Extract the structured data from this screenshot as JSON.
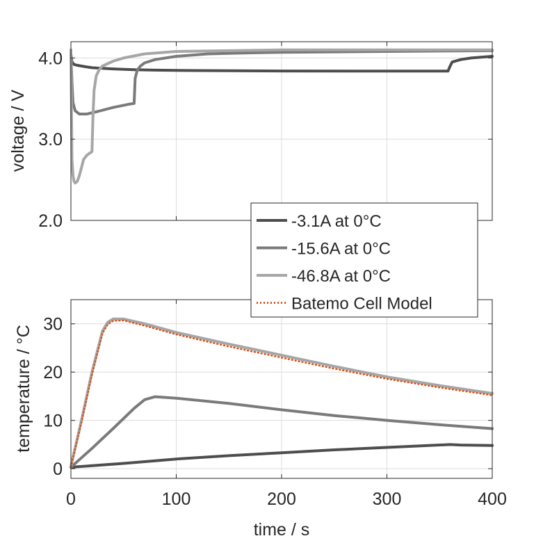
{
  "chart_data": [
    {
      "type": "line",
      "ylabel": "voltage / V",
      "xlabel": "",
      "xlim": [
        0,
        400
      ],
      "ylim": [
        2.0,
        4.2
      ],
      "xticks": [
        0,
        100,
        200,
        300,
        400
      ],
      "yticks": [
        "2.0",
        "3.0",
        "4.0"
      ],
      "ytick_values": [
        2.0,
        3.0,
        4.0
      ],
      "show_xticklabels": false,
      "grid": true,
      "series": [
        {
          "name": "-3.1A at 0°C",
          "color": "#4d4d4d",
          "x": [
            0,
            1,
            3,
            6,
            10,
            20,
            40,
            60,
            80,
            120,
            200,
            300,
            358,
            360,
            362,
            370,
            380,
            400
          ],
          "y": [
            4.05,
            3.95,
            3.92,
            3.91,
            3.9,
            3.88,
            3.865,
            3.855,
            3.85,
            3.845,
            3.84,
            3.838,
            3.838,
            3.9,
            3.95,
            3.98,
            4.0,
            4.02
          ]
        },
        {
          "name": "-15.6A at 0°C",
          "color": "#7a7a7a",
          "x": [
            0,
            1,
            2,
            4,
            8,
            15,
            25,
            40,
            55,
            60,
            61,
            63,
            66,
            70,
            80,
            100,
            130,
            160,
            200,
            250,
            300,
            350,
            400
          ],
          "y": [
            4.05,
            3.7,
            3.45,
            3.35,
            3.31,
            3.31,
            3.34,
            3.39,
            3.43,
            3.44,
            3.75,
            3.85,
            3.9,
            3.94,
            3.98,
            4.02,
            4.05,
            4.06,
            4.07,
            4.075,
            4.08,
            4.085,
            4.09
          ]
        },
        {
          "name": "-46.8A at 0°C",
          "color": "#a6a6a6",
          "x": [
            0,
            0.5,
            1,
            2,
            3,
            4,
            6,
            8,
            10,
            12,
            15,
            18,
            19.5,
            20,
            21,
            22,
            24,
            27,
            30,
            35,
            40,
            50,
            70,
            100,
            150,
            200,
            300,
            400
          ],
          "y": [
            4.1,
            3.4,
            2.75,
            2.55,
            2.48,
            2.46,
            2.48,
            2.55,
            2.65,
            2.75,
            2.8,
            2.83,
            2.84,
            2.85,
            3.3,
            3.6,
            3.78,
            3.86,
            3.9,
            3.93,
            3.96,
            4.0,
            4.05,
            4.08,
            4.09,
            4.1,
            4.1,
            4.1
          ]
        }
      ]
    },
    {
      "type": "line",
      "ylabel": "temperature / °C",
      "xlabel": "time / s",
      "xlim": [
        0,
        400
      ],
      "ylim": [
        -2,
        35
      ],
      "xticks": [
        0,
        100,
        200,
        300,
        400
      ],
      "yticks": [
        "0",
        "10",
        "20",
        "30"
      ],
      "ytick_values": [
        0,
        10,
        20,
        30
      ],
      "show_xticklabels": true,
      "grid": true,
      "series": [
        {
          "name": "-3.1A at 0°C",
          "color": "#4d4d4d",
          "x": [
            0,
            50,
            100,
            150,
            200,
            250,
            300,
            360,
            370,
            400
          ],
          "y": [
            0.3,
            1.1,
            2.0,
            2.7,
            3.3,
            3.9,
            4.4,
            5.0,
            4.9,
            4.8
          ]
        },
        {
          "name": "-15.6A at 0°C",
          "color": "#7a7a7a",
          "x": [
            0,
            20,
            40,
            60,
            70,
            80,
            100,
            150,
            200,
            250,
            300,
            350,
            400
          ],
          "y": [
            0.3,
            4.2,
            8.3,
            12.5,
            14.3,
            14.9,
            14.6,
            13.5,
            12.2,
            11.0,
            10.0,
            9.1,
            8.3
          ]
        },
        {
          "name": "-46.8A at 0°C",
          "color": "#a6a6a6",
          "x": [
            0,
            10,
            20,
            30,
            35,
            40,
            50,
            70,
            100,
            150,
            200,
            250,
            300,
            350,
            400
          ],
          "y": [
            0.5,
            10.0,
            20.0,
            28.5,
            30.3,
            31.0,
            31.0,
            30.0,
            28.2,
            25.8,
            23.5,
            21.2,
            19.0,
            17.2,
            15.6
          ]
        },
        {
          "name": "Batemo Cell Model",
          "color": "#d95319",
          "style": "dotted",
          "x": [
            0,
            10,
            20,
            30,
            35,
            40,
            50,
            70,
            100,
            150,
            200,
            250,
            300,
            350,
            400
          ],
          "y": [
            0.4,
            9.6,
            19.5,
            28.0,
            29.9,
            30.6,
            30.7,
            29.6,
            27.8,
            25.3,
            23.0,
            20.7,
            18.6,
            16.8,
            15.2
          ]
        }
      ]
    }
  ],
  "legend": {
    "placement": "between-panels-right",
    "entries": [
      {
        "label": "-3.1A at 0°C",
        "color": "#4d4d4d",
        "style": "solid"
      },
      {
        "label": "-15.6A at 0°C",
        "color": "#7a7a7a",
        "style": "solid"
      },
      {
        "label": "-46.8A at 0°C",
        "color": "#a6a6a6",
        "style": "solid"
      },
      {
        "label": "Batemo Cell Model",
        "color": "#d95319",
        "style": "dotted"
      }
    ]
  }
}
